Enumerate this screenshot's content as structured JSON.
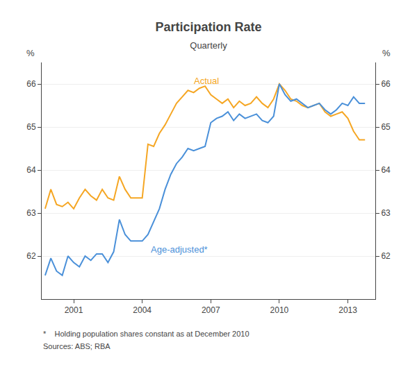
{
  "chart_data": {
    "type": "line",
    "title": "Participation Rate",
    "subtitle": "Quarterly",
    "ylabel": "%",
    "y2label": "%",
    "footnotes": [
      "*    Holding population shares constant as at December 2010",
      "Sources: ABS; RBA"
    ],
    "x": [
      1999.75,
      2000.0,
      2000.25,
      2000.5,
      2000.75,
      2001.0,
      2001.25,
      2001.5,
      2001.75,
      2002.0,
      2002.25,
      2002.5,
      2002.75,
      2003.0,
      2003.25,
      2003.5,
      2003.75,
      2004.0,
      2004.25,
      2004.5,
      2004.75,
      2005.0,
      2005.25,
      2005.5,
      2005.75,
      2006.0,
      2006.25,
      2006.5,
      2006.75,
      2007.0,
      2007.25,
      2007.5,
      2007.75,
      2008.0,
      2008.25,
      2008.5,
      2008.75,
      2009.0,
      2009.25,
      2009.5,
      2009.75,
      2010.0,
      2010.25,
      2010.5,
      2010.75,
      2011.0,
      2011.25,
      2011.5,
      2011.75,
      2012.0,
      2012.25,
      2012.5,
      2012.75,
      2013.0,
      2013.25,
      2013.5,
      2013.75
    ],
    "series": [
      {
        "name": "Actual",
        "color": "#F5A623",
        "values": [
          63.1,
          63.55,
          63.2,
          63.15,
          63.25,
          63.1,
          63.35,
          63.55,
          63.4,
          63.3,
          63.55,
          63.35,
          63.3,
          63.85,
          63.55,
          63.35,
          63.35,
          63.35,
          64.6,
          64.55,
          64.85,
          65.05,
          65.3,
          65.55,
          65.7,
          65.85,
          65.8,
          65.9,
          65.95,
          65.75,
          65.65,
          65.55,
          65.65,
          65.45,
          65.6,
          65.5,
          65.55,
          65.7,
          65.55,
          65.45,
          65.65,
          66.0,
          65.85,
          65.65,
          65.6,
          65.5,
          65.45,
          65.5,
          65.55,
          65.35,
          65.25,
          65.3,
          65.35,
          65.2,
          64.9,
          64.7,
          64.7
        ]
      },
      {
        "name": "Age-adjusted*",
        "color": "#4A90D9",
        "values": [
          61.55,
          61.95,
          61.65,
          61.55,
          62.0,
          61.85,
          61.75,
          62.0,
          61.9,
          62.05,
          62.05,
          61.85,
          62.1,
          62.85,
          62.5,
          62.35,
          62.35,
          62.35,
          62.5,
          62.8,
          63.1,
          63.55,
          63.9,
          64.15,
          64.3,
          64.5,
          64.45,
          64.5,
          64.55,
          65.1,
          65.2,
          65.25,
          65.35,
          65.15,
          65.3,
          65.2,
          65.25,
          65.3,
          65.15,
          65.1,
          65.25,
          66.0,
          65.75,
          65.6,
          65.65,
          65.55,
          65.45,
          65.5,
          65.55,
          65.4,
          65.3,
          65.4,
          65.55,
          65.5,
          65.7,
          65.55,
          65.55
        ]
      }
    ],
    "annotations": [
      {
        "text": "Actual",
        "x": 2006.2,
        "y": 65.92
      },
      {
        "text": "Age-adjusted*",
        "x": 2004.3,
        "y": 62.3
      }
    ],
    "xlim": [
      1999.6,
      2014.2
    ],
    "xticks": [
      2001,
      2004,
      2007,
      2010,
      2013
    ],
    "ylim": [
      61,
      66.5
    ],
    "yticks": [
      62,
      63,
      64,
      65,
      66
    ],
    "y2lim": [
      61,
      66.5
    ],
    "y2ticks": [
      62,
      63,
      64,
      65,
      66
    ],
    "grid": "y",
    "legend": false
  }
}
